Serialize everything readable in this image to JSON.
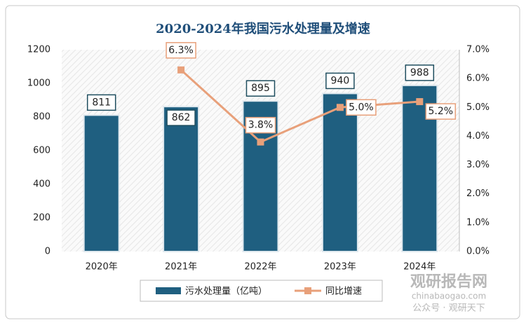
{
  "chart_data": {
    "type": "bar-line",
    "title": "2020-2024年我国污水处理量及增速",
    "categories": [
      "2020年",
      "2021年",
      "2022年",
      "2023年",
      "2024年"
    ],
    "series": [
      {
        "name": "污水处理量（亿吨）",
        "color": "#1f5f80",
        "type": "bar",
        "values": [
          811,
          862,
          895,
          940,
          988
        ]
      },
      {
        "name": "同比增速",
        "color": "#e8a07a",
        "type": "line",
        "axis": "y2",
        "values": [
          null,
          6.3,
          3.8,
          5.0,
          5.2
        ],
        "value_labels": [
          null,
          "6.3%",
          "3.8%",
          "5.0%",
          "5.2%"
        ]
      }
    ],
    "ylim": [
      0,
      1200
    ],
    "yticks": [
      0,
      200,
      400,
      600,
      800,
      1000,
      1200
    ],
    "y2lim": [
      0,
      7
    ],
    "y2ticks": [
      {
        "value": 0,
        "label": "0.0%"
      },
      {
        "value": 1,
        "label": "1.0%"
      },
      {
        "value": 2,
        "label": "2.0%"
      },
      {
        "value": 3,
        "label": "3.0%"
      },
      {
        "value": 4,
        "label": "4.0%"
      },
      {
        "value": 5,
        "label": "5.0%"
      },
      {
        "value": 6,
        "label": "6.0%"
      },
      {
        "value": 7,
        "label": "7.0%"
      }
    ],
    "legend": "bottom",
    "watermark": [
      "观研报告网",
      "chinabaogao.com",
      "公众号 · 观研天下"
    ]
  }
}
